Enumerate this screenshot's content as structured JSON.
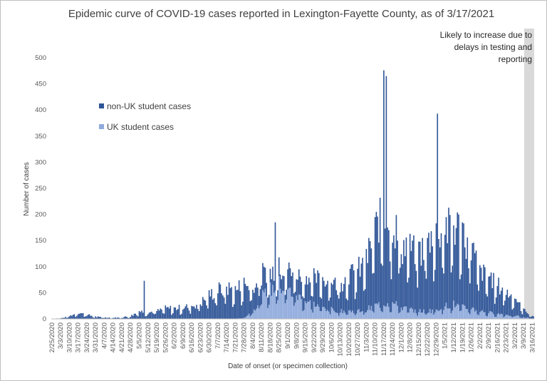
{
  "chart_data": {
    "type": "bar",
    "stacked": true,
    "title": "Epidemic curve of COVID-19 cases reported in Lexington-Fayette County, as of 3/17/2021",
    "xlabel": "Date of onset (or specimen collection)",
    "ylabel": "Number of cases",
    "ylim": [
      0,
      500
    ],
    "yticks": [
      0,
      50,
      100,
      150,
      200,
      250,
      300,
      350,
      400,
      450,
      500
    ],
    "xtick_labels": [
      "2/25/2020",
      "3/3/2020",
      "3/10/2020",
      "3/17/2020",
      "3/24/2020",
      "3/31/2020",
      "4/7/2020",
      "4/14/2020",
      "4/21/2020",
      "4/28/2020",
      "5/5/2020",
      "5/12/2020",
      "5/19/2020",
      "5/26/2020",
      "6/2/2020",
      "6/9/2020",
      "6/16/2020",
      "6/23/2020",
      "6/30/2020",
      "7/7/2020",
      "7/14/2020",
      "7/21/2020",
      "7/28/2020",
      "8/4/2020",
      "8/11/2020",
      "8/18/2020",
      "8/25/2020",
      "9/1/2020",
      "9/8/2020",
      "9/15/2020",
      "9/22/2020",
      "9/29/2020",
      "10/6/2020",
      "10/13/2020",
      "10/20/2020",
      "10/27/2020",
      "11/3/2020",
      "11/10/2020",
      "11/17/2020",
      "11/24/2020",
      "12/1/2020",
      "12/8/2020",
      "12/15/2020",
      "12/22/2020",
      "12/29/2020",
      "1/5/2021",
      "1/12/2021",
      "1/19/2021",
      "1/26/2021",
      "2/2/2021",
      "2/9/2021",
      "2/16/2021",
      "2/23/2021",
      "3/2/2021",
      "3/9/2021",
      "3/16/2021"
    ],
    "series": [
      {
        "name": "non-UK student cases",
        "color": "#2f5597",
        "weekly_typical": [
          0,
          1,
          5,
          12,
          8,
          4,
          3,
          2,
          3,
          5,
          15,
          12,
          15,
          20,
          20,
          22,
          25,
          30,
          45,
          55,
          60,
          55,
          65,
          45,
          45,
          30,
          35,
          40,
          40,
          45,
          50,
          55,
          55,
          55,
          70,
          75,
          95,
          140,
          180,
          150,
          120,
          115,
          115,
          130,
          160,
          150,
          150,
          145,
          120,
          75,
          70,
          55,
          45,
          35,
          15,
          4
        ]
      },
      {
        "name": "UK student cases",
        "color": "#8faadc",
        "weekly_typical": [
          0,
          0,
          0,
          0,
          0,
          0,
          0,
          0,
          0,
          0,
          0,
          0,
          0,
          0,
          0,
          0,
          0,
          0,
          0,
          0,
          0,
          0,
          2,
          15,
          40,
          55,
          65,
          55,
          45,
          35,
          28,
          22,
          18,
          15,
          15,
          15,
          18,
          25,
          30,
          30,
          22,
          18,
          15,
          15,
          18,
          25,
          28,
          22,
          20,
          15,
          12,
          10,
          8,
          6,
          3,
          1
        ]
      }
    ],
    "notable_peaks": [
      {
        "date": "5/9/2020",
        "value": 73
      },
      {
        "date": "8/22/2020",
        "value": 185
      },
      {
        "date": "11/17/2020",
        "value": 476
      },
      {
        "date": "11/19/2020",
        "value": 465
      },
      {
        "date": "12/30/2020",
        "value": 393
      }
    ],
    "shaded_region": {
      "from": "3/10/2021",
      "to": "3/17/2021"
    },
    "grid": false,
    "legend_position": "left-upper"
  },
  "annotation": "Likely to increase due to delays in testing and reporting",
  "annotation_lines": [
    "Likely to increase due to",
    "delays in testing and",
    "reporting"
  ],
  "legend": [
    {
      "label": "non-UK student cases",
      "color": "#2f5597"
    },
    {
      "label": "UK student cases",
      "color": "#8faadc"
    }
  ]
}
